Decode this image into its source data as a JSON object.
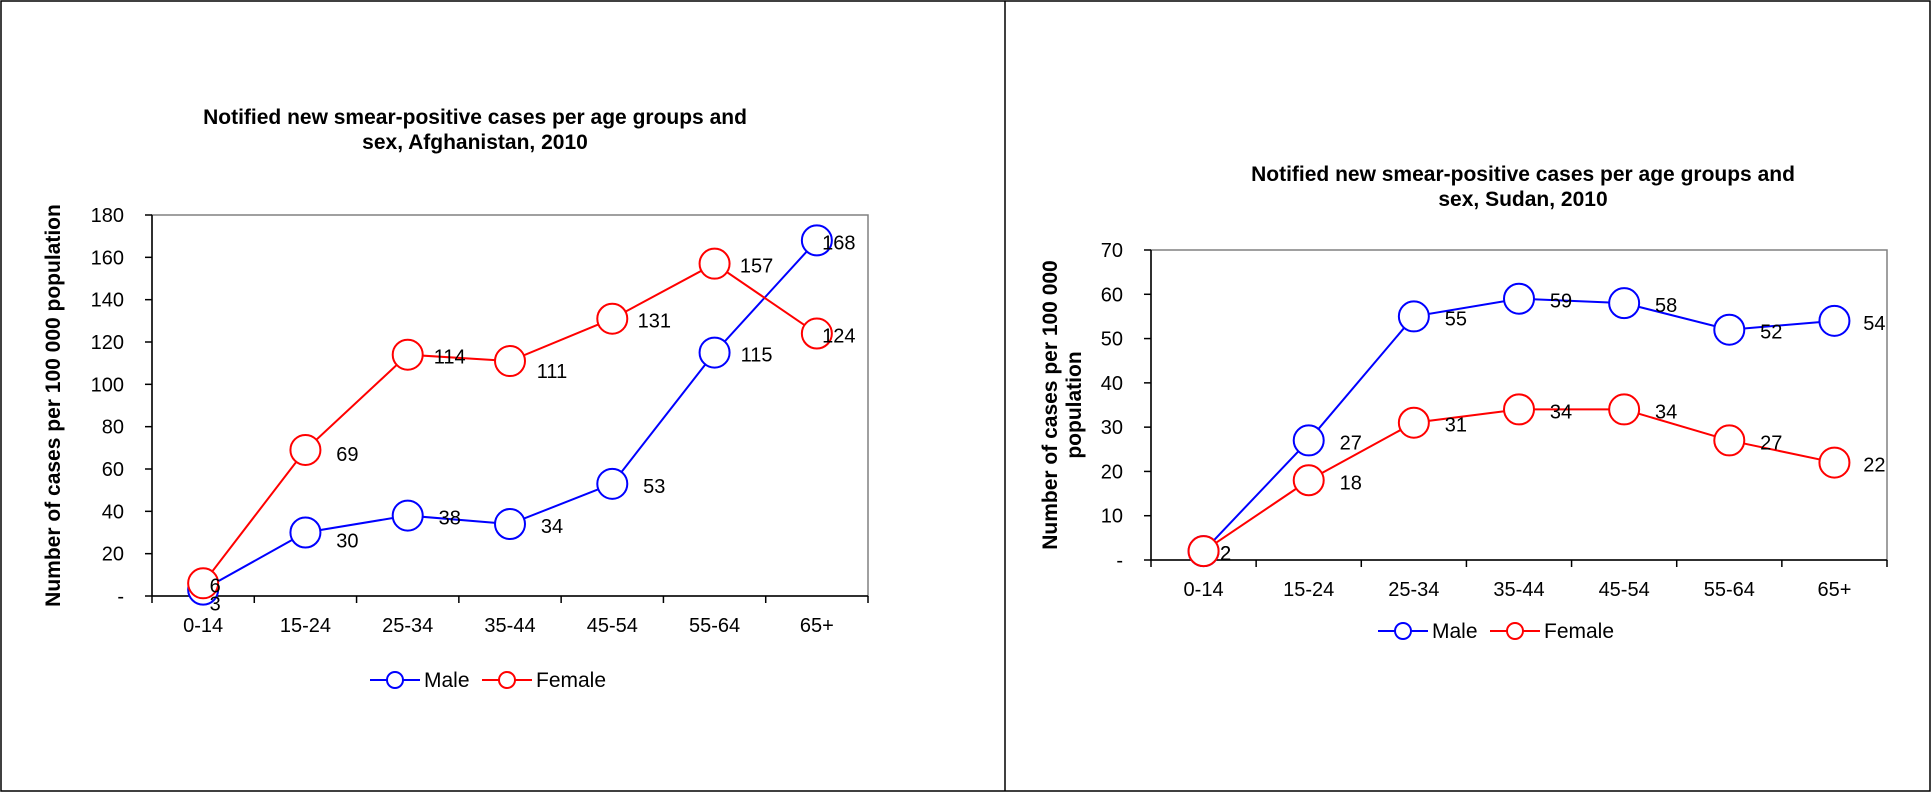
{
  "chart_data": [
    {
      "type": "line",
      "title": "Notified new smear-positive cases per age groups and sex, Afghanistan, 2010",
      "title_lines": [
        "Notified new smear-positive cases per age groups and",
        "sex, Afghanistan, 2010"
      ],
      "xlabel": "",
      "ylabel": "Number of cases per 100 000 population",
      "ylabel_lines": [
        "Number of cases per 100 000 population"
      ],
      "categories": [
        "0-14",
        "15-24",
        "25-34",
        "35-44",
        "45-54",
        "55-64",
        "65+"
      ],
      "ylim": [
        0,
        180
      ],
      "yticks": [
        0,
        20,
        40,
        60,
        80,
        100,
        120,
        140,
        160,
        180
      ],
      "ytick_labels": [
        "-",
        "20",
        "40",
        "60",
        "80",
        "100",
        "120",
        "140",
        "160",
        "180"
      ],
      "grid": false,
      "legend_position": "bottom",
      "series": [
        {
          "name": "Male",
          "color": "#0000ff",
          "values": [
            3,
            30,
            38,
            34,
            53,
            115,
            168
          ]
        },
        {
          "name": "Female",
          "color": "#ff0000",
          "values": [
            6,
            69,
            114,
            111,
            131,
            157,
            124
          ]
        }
      ]
    },
    {
      "type": "line",
      "title": "Notified new smear-positive cases per age groups and sex, Sudan, 2010",
      "title_lines": [
        "Notified new smear-positive cases per age groups and",
        "sex, Sudan, 2010"
      ],
      "xlabel": "",
      "ylabel": "Number of cases per 100 000 population",
      "ylabel_lines": [
        "Number of cases per 100 000",
        "population"
      ],
      "categories": [
        "0-14",
        "15-24",
        "25-34",
        "35-44",
        "45-54",
        "55-64",
        "65+"
      ],
      "ylim": [
        0,
        70
      ],
      "yticks": [
        0,
        10,
        20,
        30,
        40,
        50,
        60,
        70
      ],
      "ytick_labels": [
        "-",
        "10",
        "20",
        "30",
        "40",
        "50",
        "60",
        "70"
      ],
      "grid": false,
      "legend_position": "bottom",
      "series": [
        {
          "name": "Male",
          "color": "#0000ff",
          "values": [
            2,
            27,
            55,
            59,
            58,
            52,
            54
          ]
        },
        {
          "name": "Female",
          "color": "#ff0000",
          "values": [
            2,
            18,
            31,
            34,
            34,
            27,
            22
          ]
        }
      ]
    }
  ]
}
